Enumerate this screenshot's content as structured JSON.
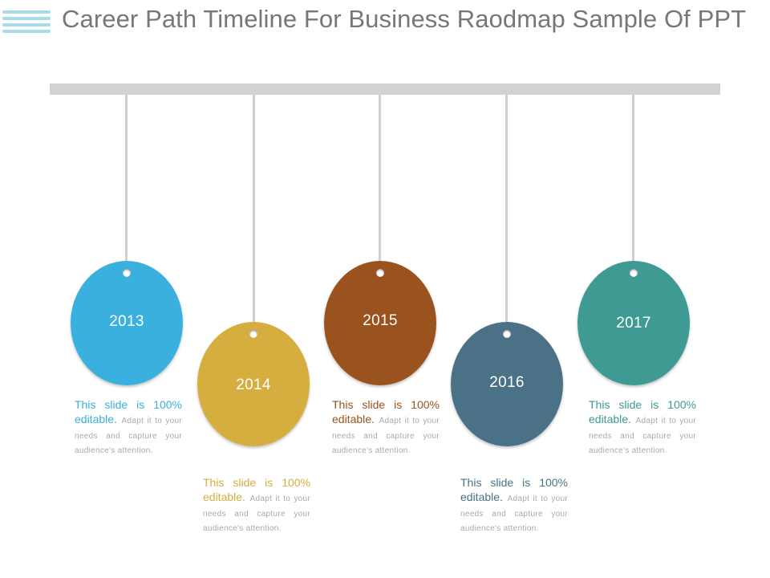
{
  "header": {
    "title": "Career Path Timeline For Business Raodmap Sample Of PPT"
  },
  "timeline": {
    "items": [
      {
        "year": "2013",
        "color": "#3ab0de",
        "rim": "#1f7fa8",
        "lead": "This slide is 100% editable.",
        "rest": "Adapt it to your needs and capture your audience's attention."
      },
      {
        "year": "2014",
        "color": "#d6ad3f",
        "rim": "#a87f1f",
        "lead": "This slide is 100% editable.",
        "rest": "Adapt it to your needs and capture your audience's attention."
      },
      {
        "year": "2015",
        "color": "#9a531e",
        "rim": "#663310",
        "lead": "This slide is 100% editable.",
        "rest": "Adapt it to your needs and capture your audience's attention."
      },
      {
        "year": "2016",
        "color": "#4a7186",
        "rim": "#2c4c5e",
        "lead": "This slide is 100% editable.",
        "rest": "Adapt it to your needs and capture your audience's attention."
      },
      {
        "year": "2017",
        "color": "#3e9a93",
        "rim": "#25706a",
        "lead": "This slide is 100% editable.",
        "rest": "Adapt it to your needs and capture your audience's attention."
      }
    ]
  }
}
